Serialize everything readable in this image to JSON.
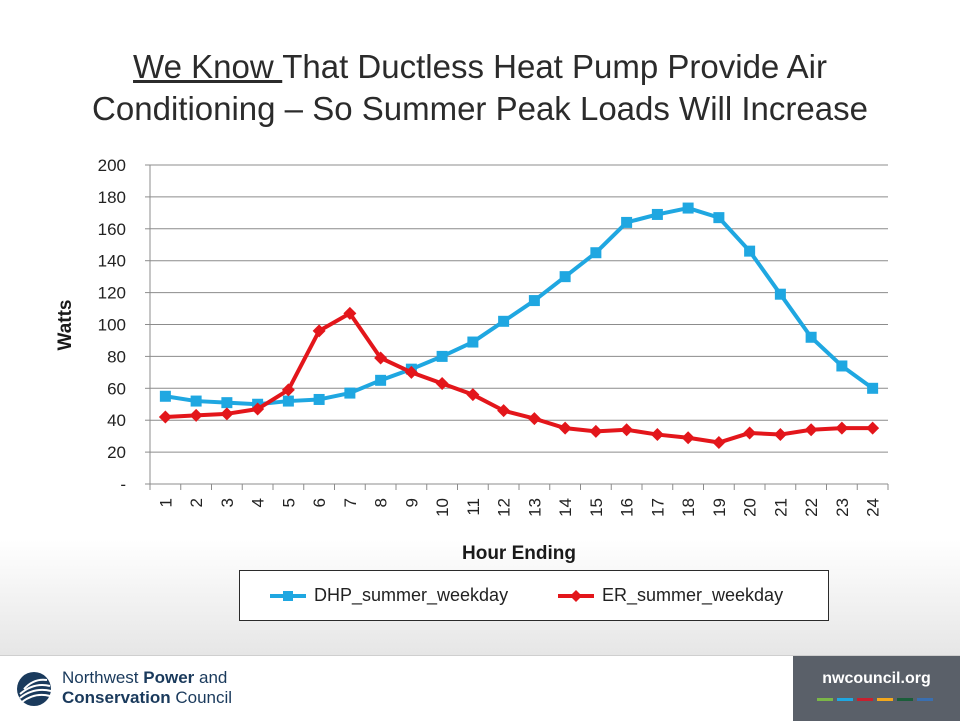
{
  "slide": {
    "title_underlined": "We Know ",
    "title_rest": "That Ductless Heat Pump Provide Air",
    "title_line2": "Conditioning – So Summer Peak Loads Will Increase"
  },
  "chart_data": {
    "type": "line",
    "title": "",
    "xlabel": "Hour Ending",
    "ylabel": "Watts",
    "categories": [
      "1",
      "2",
      "3",
      "4",
      "5",
      "6",
      "7",
      "8",
      "9",
      "10",
      "11",
      "12",
      "13",
      "14",
      "15",
      "16",
      "17",
      "18",
      "19",
      "20",
      "21",
      "22",
      "23",
      "24"
    ],
    "ylim": [
      0,
      200
    ],
    "yticks": [
      0,
      20,
      40,
      60,
      80,
      100,
      120,
      140,
      160,
      180,
      200
    ],
    "ytick_labels": [
      "-",
      "20",
      "40",
      "60",
      "80",
      "100",
      "120",
      "140",
      "160",
      "180",
      "200"
    ],
    "grid": true,
    "legend_position": "bottom",
    "series": [
      {
        "name": "DHP_summer_weekday",
        "color": "#1fa7e1",
        "marker": "square",
        "values": [
          55,
          52,
          51,
          50,
          52,
          53,
          57,
          65,
          72,
          80,
          89,
          102,
          115,
          130,
          145,
          164,
          169,
          173,
          167,
          146,
          119,
          92,
          74,
          60
        ]
      },
      {
        "name": "ER_summer_weekday",
        "color": "#e3161b",
        "marker": "diamond",
        "values": [
          42,
          43,
          44,
          47,
          59,
          96,
          107,
          79,
          70,
          63,
          56,
          46,
          41,
          35,
          33,
          34,
          31,
          29,
          26,
          32,
          31,
          34,
          35,
          35
        ]
      }
    ]
  },
  "footer": {
    "org_line1_a": "Northwest ",
    "org_line1_b": "Power",
    "org_line1_c": " and",
    "org_line2_a": "Conservation",
    "org_line2_b": " Council",
    "site": "nwcouncil.org",
    "bar_colors": [
      "#7ab648",
      "#1fa7e1",
      "#c8202f",
      "#f3a81c",
      "#1b5e3a",
      "#3a6fb0"
    ]
  }
}
